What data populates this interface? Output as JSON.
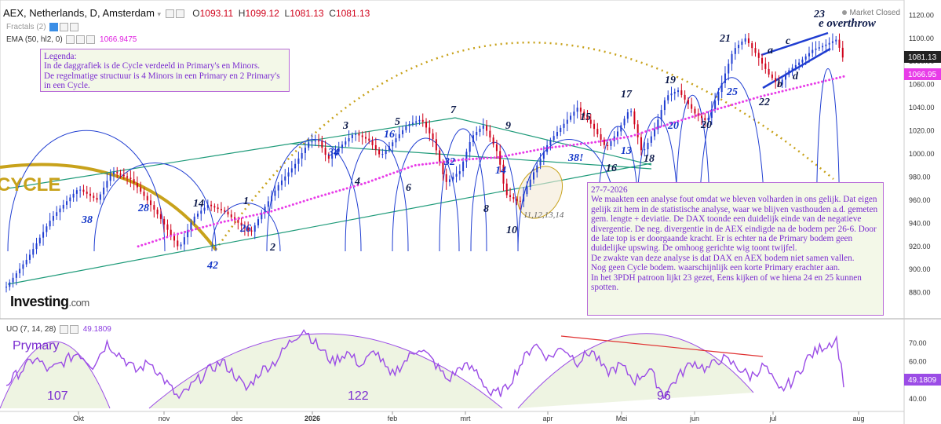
{
  "header": {
    "title": "AEX, Netherlands, D, Amsterdam",
    "open_label": "O",
    "open": "1093.11",
    "high_label": "H",
    "high": "1099.12",
    "low_label": "L",
    "low": "1081.13",
    "close_label": "C",
    "close": "1081.13",
    "fractals": "Fractals (2)",
    "ema_label": "EMA (50, hl2, 0)",
    "ema_value": "1066.9475",
    "market_status": "Market Closed"
  },
  "price_badges": {
    "last": "1081.13",
    "ema": "1066.95"
  },
  "legend_note": "Legenda:\nIn de daggrafiek is de Cycle verdeeld in Primary's en Minors.\nDe regelmatige structuur is 4 Minors in een Primary en 2 Primary's in een Cycle.",
  "analysis_note": "27-7-2026\nWe maakten een analyse fout omdat we bleven volharden in ons gelijk. Dat eigen gelijk zit hem in de statistische analyse, waar we blijven vasthouden a.d. gemeten gem. lengte + deviatie. De DAX toonde een duidelijk einde van de negatieve divergentie. De neg. divergentie in de AEX eindigde na de bodem per 26-6. Door de late top is er doorgaande kracht. Er is echter na de Primary bodem geen duidelijke upswing. De omhoog gerichte wig toont twijfel.\nDe zwakte van deze analyse is  dat DAX en AEX bodem niet samen vallen.\nNog geen Cycle bodem. waarschijnlijk een korte Primary erachter aan.\nIn het 3PDH patroon lijkt 23 gezet, Eens kijken of we hiena  24 en 25 kunnen spotten.",
  "cycle_text": "CYCLE",
  "overthrow_text": "e overthrow",
  "brand": {
    "name": "Investing",
    "suffix": ".com"
  },
  "labels": {
    "n1": "1",
    "n2": "2",
    "n3": "3",
    "n5": "5",
    "n6": "6",
    "n7": "7",
    "n8": "8",
    "n9": "9",
    "n10": "10",
    "n14": "14",
    "n14b": "14",
    "n15": "15",
    "n16": "16",
    "n16b": "16",
    "n17": "17",
    "n18": "18",
    "n19": "19",
    "n20": "20",
    "n20b": "20",
    "n21": "21",
    "n22": "22",
    "n23": "23",
    "n25": "25",
    "n26": "26",
    "n28": "28",
    "n32": "32",
    "n34": "34",
    "n38": "38",
    "n38b": "38!",
    "n42": "42",
    "n4": "4",
    "n13": "13",
    "cluster": "11,12,13,14",
    "a": "a",
    "b": "b",
    "c": "c",
    "d": "d"
  },
  "uo": {
    "label": "UO (7, 14, 28)",
    "value": "49.1809",
    "badge": "49.1809",
    "prymary": "Prymary",
    "c1": "107",
    "c2": "122",
    "c3": "96"
  },
  "colors": {
    "candle_up": "#1f3dd1",
    "candle_down": "#d0021b",
    "ema": "#e83ce8",
    "channel": "#1f9b7a",
    "cycle": "#c8a21b",
    "uo": "#9b4ce6",
    "arc": "#1f3dd1"
  },
  "chart_data": [
    {
      "type": "line",
      "title": "AEX, Netherlands, D, Amsterdam",
      "ylim": [
        870,
        1125
      ],
      "y_ticks": [
        880,
        900,
        920,
        940,
        960,
        980,
        1000,
        1020,
        1040,
        1060,
        1080,
        1100,
        1120
      ],
      "x_ticks": [
        "Okt",
        "nov",
        "dec",
        "2026",
        "feb",
        "mrt",
        "apr",
        "Mei",
        "jun",
        "jul",
        "aug"
      ],
      "series": [
        {
          "name": "AEX",
          "points": [
            [
              0,
              885
            ],
            [
              9,
              910
            ],
            [
              19,
              945
            ],
            [
              30,
              970
            ],
            [
              38,
              960
            ],
            [
              44,
              985
            ],
            [
              52,
              978
            ],
            [
              58,
              962
            ],
            [
              64,
              945
            ],
            [
              70,
              925
            ],
            [
              72,
              918
            ],
            [
              78,
              945
            ],
            [
              84,
              956
            ],
            [
              91,
              950
            ],
            [
              98,
              938
            ],
            [
              102,
              932
            ],
            [
              108,
              955
            ],
            [
              114,
              975
            ],
            [
              120,
              990
            ],
            [
              126,
              1010
            ],
            [
              130,
              1012
            ],
            [
              134,
              995
            ],
            [
              140,
              1008
            ],
            [
              145,
              1018
            ],
            [
              151,
              1012
            ],
            [
              156,
              998
            ],
            [
              161,
              1010
            ],
            [
              167,
              1025
            ],
            [
              173,
              1030
            ],
            [
              178,
              1012
            ],
            [
              183,
              975
            ],
            [
              189,
              985
            ],
            [
              194,
              1015
            ],
            [
              199,
              1025
            ],
            [
              205,
              1000
            ],
            [
              208,
              965
            ],
            [
              214,
              958
            ],
            [
              220,
              985
            ],
            [
              226,
              1010
            ],
            [
              232,
              1025
            ],
            [
              238,
              1040
            ],
            [
              244,
              1025
            ],
            [
              250,
              1005
            ],
            [
              255,
              1020
            ],
            [
              260,
              1040
            ],
            [
              265,
              1000
            ],
            [
              270,
              1020
            ],
            [
              275,
              1050
            ],
            [
              280,
              1055
            ],
            [
              287,
              1035
            ],
            [
              292,
              1028
            ],
            [
              298,
              1060
            ],
            [
              303,
              1090
            ],
            [
              308,
              1100
            ],
            [
              313,
              1085
            ],
            [
              318,
              1068
            ],
            [
              322,
              1060
            ],
            [
              326,
              1072
            ],
            [
              331,
              1080
            ],
            [
              336,
              1090
            ],
            [
              341,
              1094
            ],
            [
              346,
              1099
            ],
            [
              349,
              1081
            ]
          ]
        },
        {
          "name": "EMA (50, hl2, 0)",
          "points": [
            [
              55,
              920
            ],
            [
              70,
              930
            ],
            [
              90,
              941
            ],
            [
              110,
              950
            ],
            [
              130,
              963
            ],
            [
              150,
              975
            ],
            [
              170,
              990
            ],
            [
              190,
              995
            ],
            [
              205,
              997
            ],
            [
              225,
              1005
            ],
            [
              245,
              1010
            ],
            [
              260,
              1015
            ],
            [
              275,
              1025
            ],
            [
              295,
              1038
            ],
            [
              315,
              1050
            ],
            [
              335,
              1060
            ],
            [
              349,
              1067
            ]
          ]
        }
      ]
    },
    {
      "type": "line",
      "title": "UO (7, 14, 28)",
      "ylim": [
        35,
        78
      ],
      "y_ticks": [
        40,
        50,
        60,
        70
      ],
      "series": [
        {
          "name": "UO (7, 14, 28)",
          "points": [
            [
              0,
              48
            ],
            [
              6,
              55
            ],
            [
              12,
              62
            ],
            [
              18,
              55
            ],
            [
              24,
              60
            ],
            [
              30,
              65
            ],
            [
              36,
              58
            ],
            [
              42,
              70
            ],
            [
              48,
              63
            ],
            [
              54,
              55
            ],
            [
              60,
              60
            ],
            [
              66,
              50
            ],
            [
              72,
              40
            ],
            [
              78,
              48
            ],
            [
              84,
              55
            ],
            [
              90,
              60
            ],
            [
              96,
              52
            ],
            [
              100,
              45
            ],
            [
              106,
              55
            ],
            [
              112,
              60
            ],
            [
              118,
              70
            ],
            [
              124,
              78
            ],
            [
              130,
              68
            ],
            [
              136,
              60
            ],
            [
              142,
              65
            ],
            [
              148,
              58
            ],
            [
              154,
              66
            ],
            [
              160,
              52
            ],
            [
              166,
              60
            ],
            [
              172,
              68
            ],
            [
              178,
              60
            ],
            [
              184,
              50
            ],
            [
              190,
              58
            ],
            [
              196,
              55
            ],
            [
              202,
              42
            ],
            [
              208,
              45
            ],
            [
              214,
              58
            ],
            [
              220,
              70
            ],
            [
              226,
              62
            ],
            [
              232,
              68
            ],
            [
              238,
              60
            ],
            [
              244,
              66
            ],
            [
              250,
              54
            ],
            [
              256,
              58
            ],
            [
              262,
              50
            ],
            [
              268,
              56
            ],
            [
              274,
              42
            ],
            [
              280,
              52
            ],
            [
              286,
              60
            ],
            [
              292,
              56
            ],
            [
              298,
              62
            ],
            [
              304,
              58
            ],
            [
              310,
              52
            ],
            [
              316,
              58
            ],
            [
              322,
              44
            ],
            [
              328,
              50
            ],
            [
              334,
              62
            ],
            [
              340,
              68
            ],
            [
              346,
              72
            ],
            [
              349,
              49
            ]
          ]
        }
      ]
    }
  ]
}
